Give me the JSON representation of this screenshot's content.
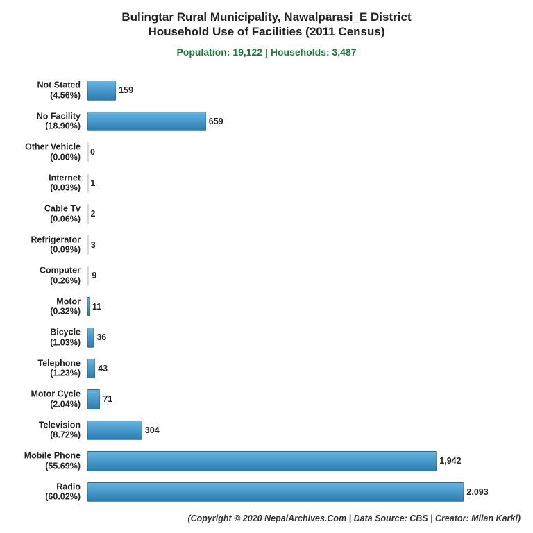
{
  "title_line1": "Bulingtar Rural Municipality, Nawalparasi_E District",
  "title_line2": "Household Use of Facilities (2011 Census)",
  "title_fontsize": 17,
  "title_color": "#222222",
  "subtitle": "Population: 19,122 | Households: 3,487",
  "subtitle_fontsize": 14,
  "subtitle_color": "#1a7a3a",
  "credit": "(Copyright © 2020 NepalArchives.Com | Data Source: CBS | Creator: Milan Karki)",
  "chart": {
    "type": "bar-horizontal",
    "xmax": 2400,
    "bar_gradient_start": "#65b4e0",
    "bar_gradient_end": "#2b7cb3",
    "background_color": "#ffffff",
    "label_fontsize": 12.5,
    "value_fontsize": 12.5,
    "value_color": "#222222",
    "label_color": "#222222",
    "items": [
      {
        "name": "Not Stated",
        "pct": "4.56%",
        "value": 159,
        "value_label": "159"
      },
      {
        "name": "No Facility",
        "pct": "18.90%",
        "value": 659,
        "value_label": "659"
      },
      {
        "name": "Other Vehicle",
        "pct": "0.00%",
        "value": 0,
        "value_label": "0"
      },
      {
        "name": "Internet",
        "pct": "0.03%",
        "value": 1,
        "value_label": "1"
      },
      {
        "name": "Cable Tv",
        "pct": "0.06%",
        "value": 2,
        "value_label": "2"
      },
      {
        "name": "Refrigerator",
        "pct": "0.09%",
        "value": 3,
        "value_label": "3"
      },
      {
        "name": "Computer",
        "pct": "0.26%",
        "value": 9,
        "value_label": "9"
      },
      {
        "name": "Motor",
        "pct": "0.32%",
        "value": 11,
        "value_label": "11"
      },
      {
        "name": "Bicycle",
        "pct": "1.03%",
        "value": 36,
        "value_label": "36"
      },
      {
        "name": "Telephone",
        "pct": "1.23%",
        "value": 43,
        "value_label": "43"
      },
      {
        "name": "Motor Cycle",
        "pct": "2.04%",
        "value": 71,
        "value_label": "71"
      },
      {
        "name": "Television",
        "pct": "8.72%",
        "value": 304,
        "value_label": "304"
      },
      {
        "name": "Mobile Phone",
        "pct": "55.69%",
        "value": 1942,
        "value_label": "1,942"
      },
      {
        "name": "Radio",
        "pct": "60.02%",
        "value": 2093,
        "value_label": "2,093"
      }
    ]
  }
}
